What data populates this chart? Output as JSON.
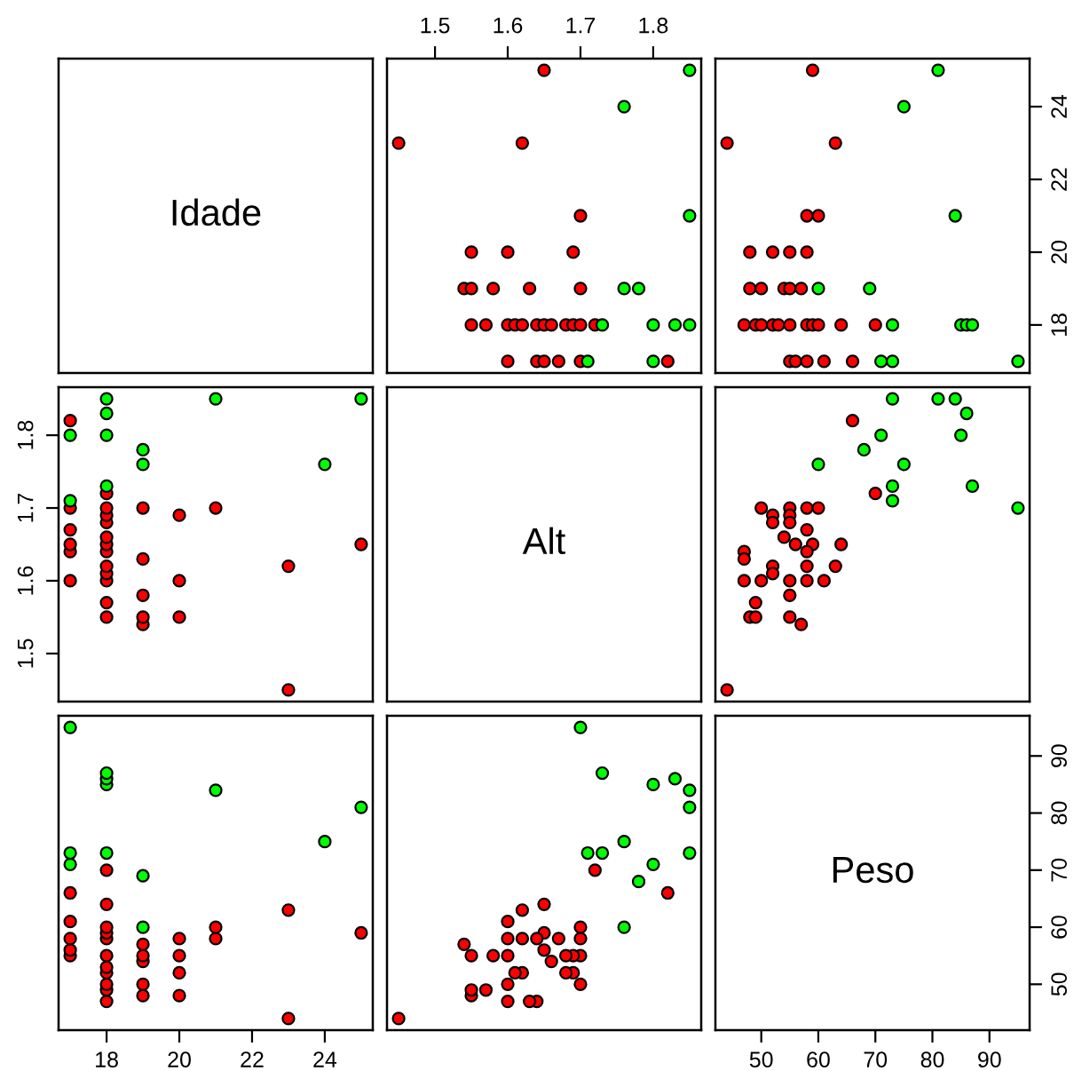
{
  "chart_data": [
    {
      "type": "scatter",
      "title": "Idade",
      "tick_labels": false,
      "xlim": [
        16.68,
        25.32
      ],
      "ylim": [
        16.68,
        25.32
      ]
    },
    {
      "type": "scatter",
      "marker": "circle",
      "tick_labels": "x",
      "xlim": [
        1.434,
        1.866
      ],
      "ylim": [
        16.68,
        25.32
      ],
      "xticks": [
        1.5,
        1.6,
        1.7,
        1.8
      ],
      "series": [
        {
          "color": "#ff0000",
          "x": [
            1.65,
            1.45,
            1.62,
            1.7,
            1.55,
            1.6,
            1.69,
            1.54,
            1.55,
            1.58,
            1.63,
            1.7,
            1.55,
            1.57,
            1.6,
            1.61,
            1.62,
            1.64,
            1.65,
            1.66,
            1.68,
            1.69,
            1.7,
            1.72,
            1.6,
            1.64,
            1.65,
            1.67,
            1.7,
            1.82
          ],
          "values": [
            25,
            23,
            23,
            21,
            20,
            20,
            20,
            19,
            19,
            19,
            19,
            19,
            18,
            18,
            18,
            18,
            18,
            18,
            18,
            18,
            18,
            18,
            18,
            18,
            17,
            17,
            17,
            17,
            17,
            17
          ]
        },
        {
          "color": "#00ff00",
          "x": [
            1.85,
            1.76,
            1.85,
            1.76,
            1.78,
            1.73,
            1.8,
            1.83,
            1.85,
            1.71,
            1.8
          ],
          "values": [
            25,
            24,
            21,
            19,
            19,
            18,
            18,
            18,
            18,
            17,
            17
          ]
        }
      ]
    },
    {
      "type": "scatter",
      "marker": "circle",
      "tick_labels": "y",
      "xlim": [
        41.96,
        97.04
      ],
      "ylim": [
        16.68,
        25.32
      ],
      "yticks": [
        18,
        20,
        22,
        24
      ],
      "series": [
        {
          "color": "#ff0000",
          "x": [
            59,
            44,
            63,
            58,
            60,
            48,
            52,
            55,
            58,
            48,
            50,
            54,
            55,
            57,
            47,
            49,
            50,
            52,
            53,
            55,
            58,
            59,
            60,
            64,
            70,
            55,
            56,
            58,
            61,
            66
          ],
          "values": [
            25,
            23,
            23,
            21,
            21,
            20,
            20,
            20,
            20,
            19,
            19,
            19,
            19,
            19,
            18,
            18,
            18,
            18,
            18,
            18,
            18,
            18,
            18,
            18,
            18,
            17,
            17,
            17,
            17,
            17
          ]
        },
        {
          "color": "#00ff00",
          "x": [
            81,
            75,
            84,
            60,
            69,
            73,
            85,
            86,
            87,
            71,
            73,
            95
          ],
          "values": [
            25,
            24,
            21,
            19,
            19,
            18,
            18,
            18,
            18,
            17,
            17,
            17
          ]
        }
      ]
    },
    {
      "type": "scatter",
      "marker": "circle",
      "tick_labels": "y",
      "xlim": [
        16.68,
        25.32
      ],
      "ylim": [
        1.434,
        1.866
      ],
      "yticks": [
        1.5,
        1.6,
        1.7,
        1.8
      ],
      "series": [
        {
          "color": "#ff0000",
          "values": [
            1.65,
            1.45,
            1.62,
            1.7,
            1.55,
            1.6,
            1.69,
            1.54,
            1.55,
            1.58,
            1.63,
            1.7,
            1.55,
            1.57,
            1.6,
            1.61,
            1.62,
            1.64,
            1.65,
            1.66,
            1.68,
            1.69,
            1.7,
            1.72,
            1.6,
            1.64,
            1.65,
            1.67,
            1.7,
            1.82
          ],
          "x": [
            25,
            23,
            23,
            21,
            20,
            20,
            20,
            19,
            19,
            19,
            19,
            19,
            18,
            18,
            18,
            18,
            18,
            18,
            18,
            18,
            18,
            18,
            18,
            18,
            17,
            17,
            17,
            17,
            17,
            17
          ]
        },
        {
          "color": "#00ff00",
          "values": [
            1.85,
            1.76,
            1.85,
            1.76,
            1.78,
            1.73,
            1.8,
            1.83,
            1.85,
            1.71,
            1.8
          ],
          "x": [
            25,
            24,
            21,
            19,
            19,
            18,
            18,
            18,
            18,
            17,
            17
          ]
        }
      ]
    },
    {
      "type": "scatter",
      "title": "Alt",
      "tick_labels": false,
      "xlim": [
        1.434,
        1.866
      ],
      "ylim": [
        1.434,
        1.866
      ]
    },
    {
      "type": "scatter",
      "marker": "circle",
      "tick_labels": false,
      "xlim": [
        41.96,
        97.04
      ],
      "ylim": [
        1.434,
        1.866
      ],
      "series": [
        {
          "color": "#ff0000",
          "x": [
            66,
            70,
            50,
            55,
            58,
            60,
            52,
            52,
            55,
            55,
            58,
            54,
            56,
            59,
            58,
            64,
            47,
            47,
            52,
            52,
            58,
            63,
            47,
            50,
            55,
            58,
            61,
            55,
            49,
            48,
            49,
            55,
            57,
            44
          ],
          "values": [
            1.82,
            1.72,
            1.7,
            1.7,
            1.7,
            1.7,
            1.69,
            1.68,
            1.69,
            1.68,
            1.67,
            1.66,
            1.65,
            1.65,
            1.64,
            1.65,
            1.64,
            1.63,
            1.62,
            1.61,
            1.62,
            1.62,
            1.6,
            1.6,
            1.6,
            1.6,
            1.6,
            1.58,
            1.57,
            1.55,
            1.55,
            1.55,
            1.54,
            1.45
          ]
        },
        {
          "color": "#00ff00",
          "x": [
            73,
            81,
            84,
            86,
            85,
            71,
            68,
            60,
            75,
            73,
            87,
            73,
            95
          ],
          "values": [
            1.85,
            1.85,
            1.85,
            1.83,
            1.8,
            1.8,
            1.78,
            1.76,
            1.76,
            1.73,
            1.73,
            1.71,
            1.7
          ]
        }
      ]
    },
    {
      "type": "scatter",
      "marker": "circle",
      "tick_labels": "x",
      "xlim": [
        16.68,
        25.32
      ],
      "ylim": [
        41.96,
        97.04
      ],
      "xticks": [
        18,
        20,
        22,
        24
      ],
      "series": [
        {
          "color": "#ff0000",
          "values": [
            59,
            44,
            63,
            58,
            60,
            48,
            52,
            55,
            58,
            48,
            50,
            54,
            55,
            57,
            47,
            49,
            50,
            52,
            53,
            55,
            58,
            59,
            60,
            64,
            70,
            55,
            56,
            58,
            61,
            66
          ],
          "x": [
            25,
            23,
            23,
            21,
            21,
            20,
            20,
            20,
            20,
            19,
            19,
            19,
            19,
            19,
            18,
            18,
            18,
            18,
            18,
            18,
            18,
            18,
            18,
            18,
            18,
            17,
            17,
            17,
            17,
            17
          ]
        },
        {
          "color": "#00ff00",
          "values": [
            81,
            75,
            84,
            60,
            69,
            73,
            85,
            86,
            87,
            71,
            73,
            95
          ],
          "x": [
            25,
            24,
            21,
            19,
            19,
            18,
            18,
            18,
            18,
            17,
            17,
            17
          ]
        }
      ]
    },
    {
      "type": "scatter",
      "marker": "circle",
      "tick_labels": false,
      "xlim": [
        1.434,
        1.866
      ],
      "ylim": [
        41.96,
        97.04
      ],
      "series": [
        {
          "color": "#ff0000",
          "values": [
            66,
            70,
            50,
            55,
            58,
            60,
            52,
            52,
            55,
            55,
            58,
            54,
            56,
            59,
            58,
            64,
            47,
            47,
            52,
            52,
            58,
            63,
            47,
            50,
            55,
            58,
            61,
            55,
            49,
            48,
            49,
            55,
            57,
            44
          ],
          "x": [
            1.82,
            1.72,
            1.7,
            1.7,
            1.7,
            1.7,
            1.69,
            1.68,
            1.69,
            1.68,
            1.67,
            1.66,
            1.65,
            1.65,
            1.64,
            1.65,
            1.64,
            1.63,
            1.62,
            1.61,
            1.62,
            1.62,
            1.6,
            1.6,
            1.6,
            1.6,
            1.6,
            1.58,
            1.57,
            1.55,
            1.55,
            1.55,
            1.54,
            1.45
          ]
        },
        {
          "color": "#00ff00",
          "values": [
            73,
            81,
            84,
            86,
            85,
            71,
            68,
            60,
            75,
            73,
            87,
            73,
            95
          ],
          "x": [
            1.85,
            1.85,
            1.85,
            1.83,
            1.8,
            1.8,
            1.78,
            1.76,
            1.76,
            1.73,
            1.73,
            1.71,
            1.7
          ]
        }
      ]
    },
    {
      "type": "scatter",
      "title": "Peso",
      "xlim": [
        41.96,
        97.04
      ],
      "ylim": [
        41.96,
        97.04
      ],
      "xticks": [
        50,
        60,
        70,
        80,
        90
      ],
      "yticks": [
        50,
        60,
        70,
        80,
        90
      ]
    }
  ]
}
